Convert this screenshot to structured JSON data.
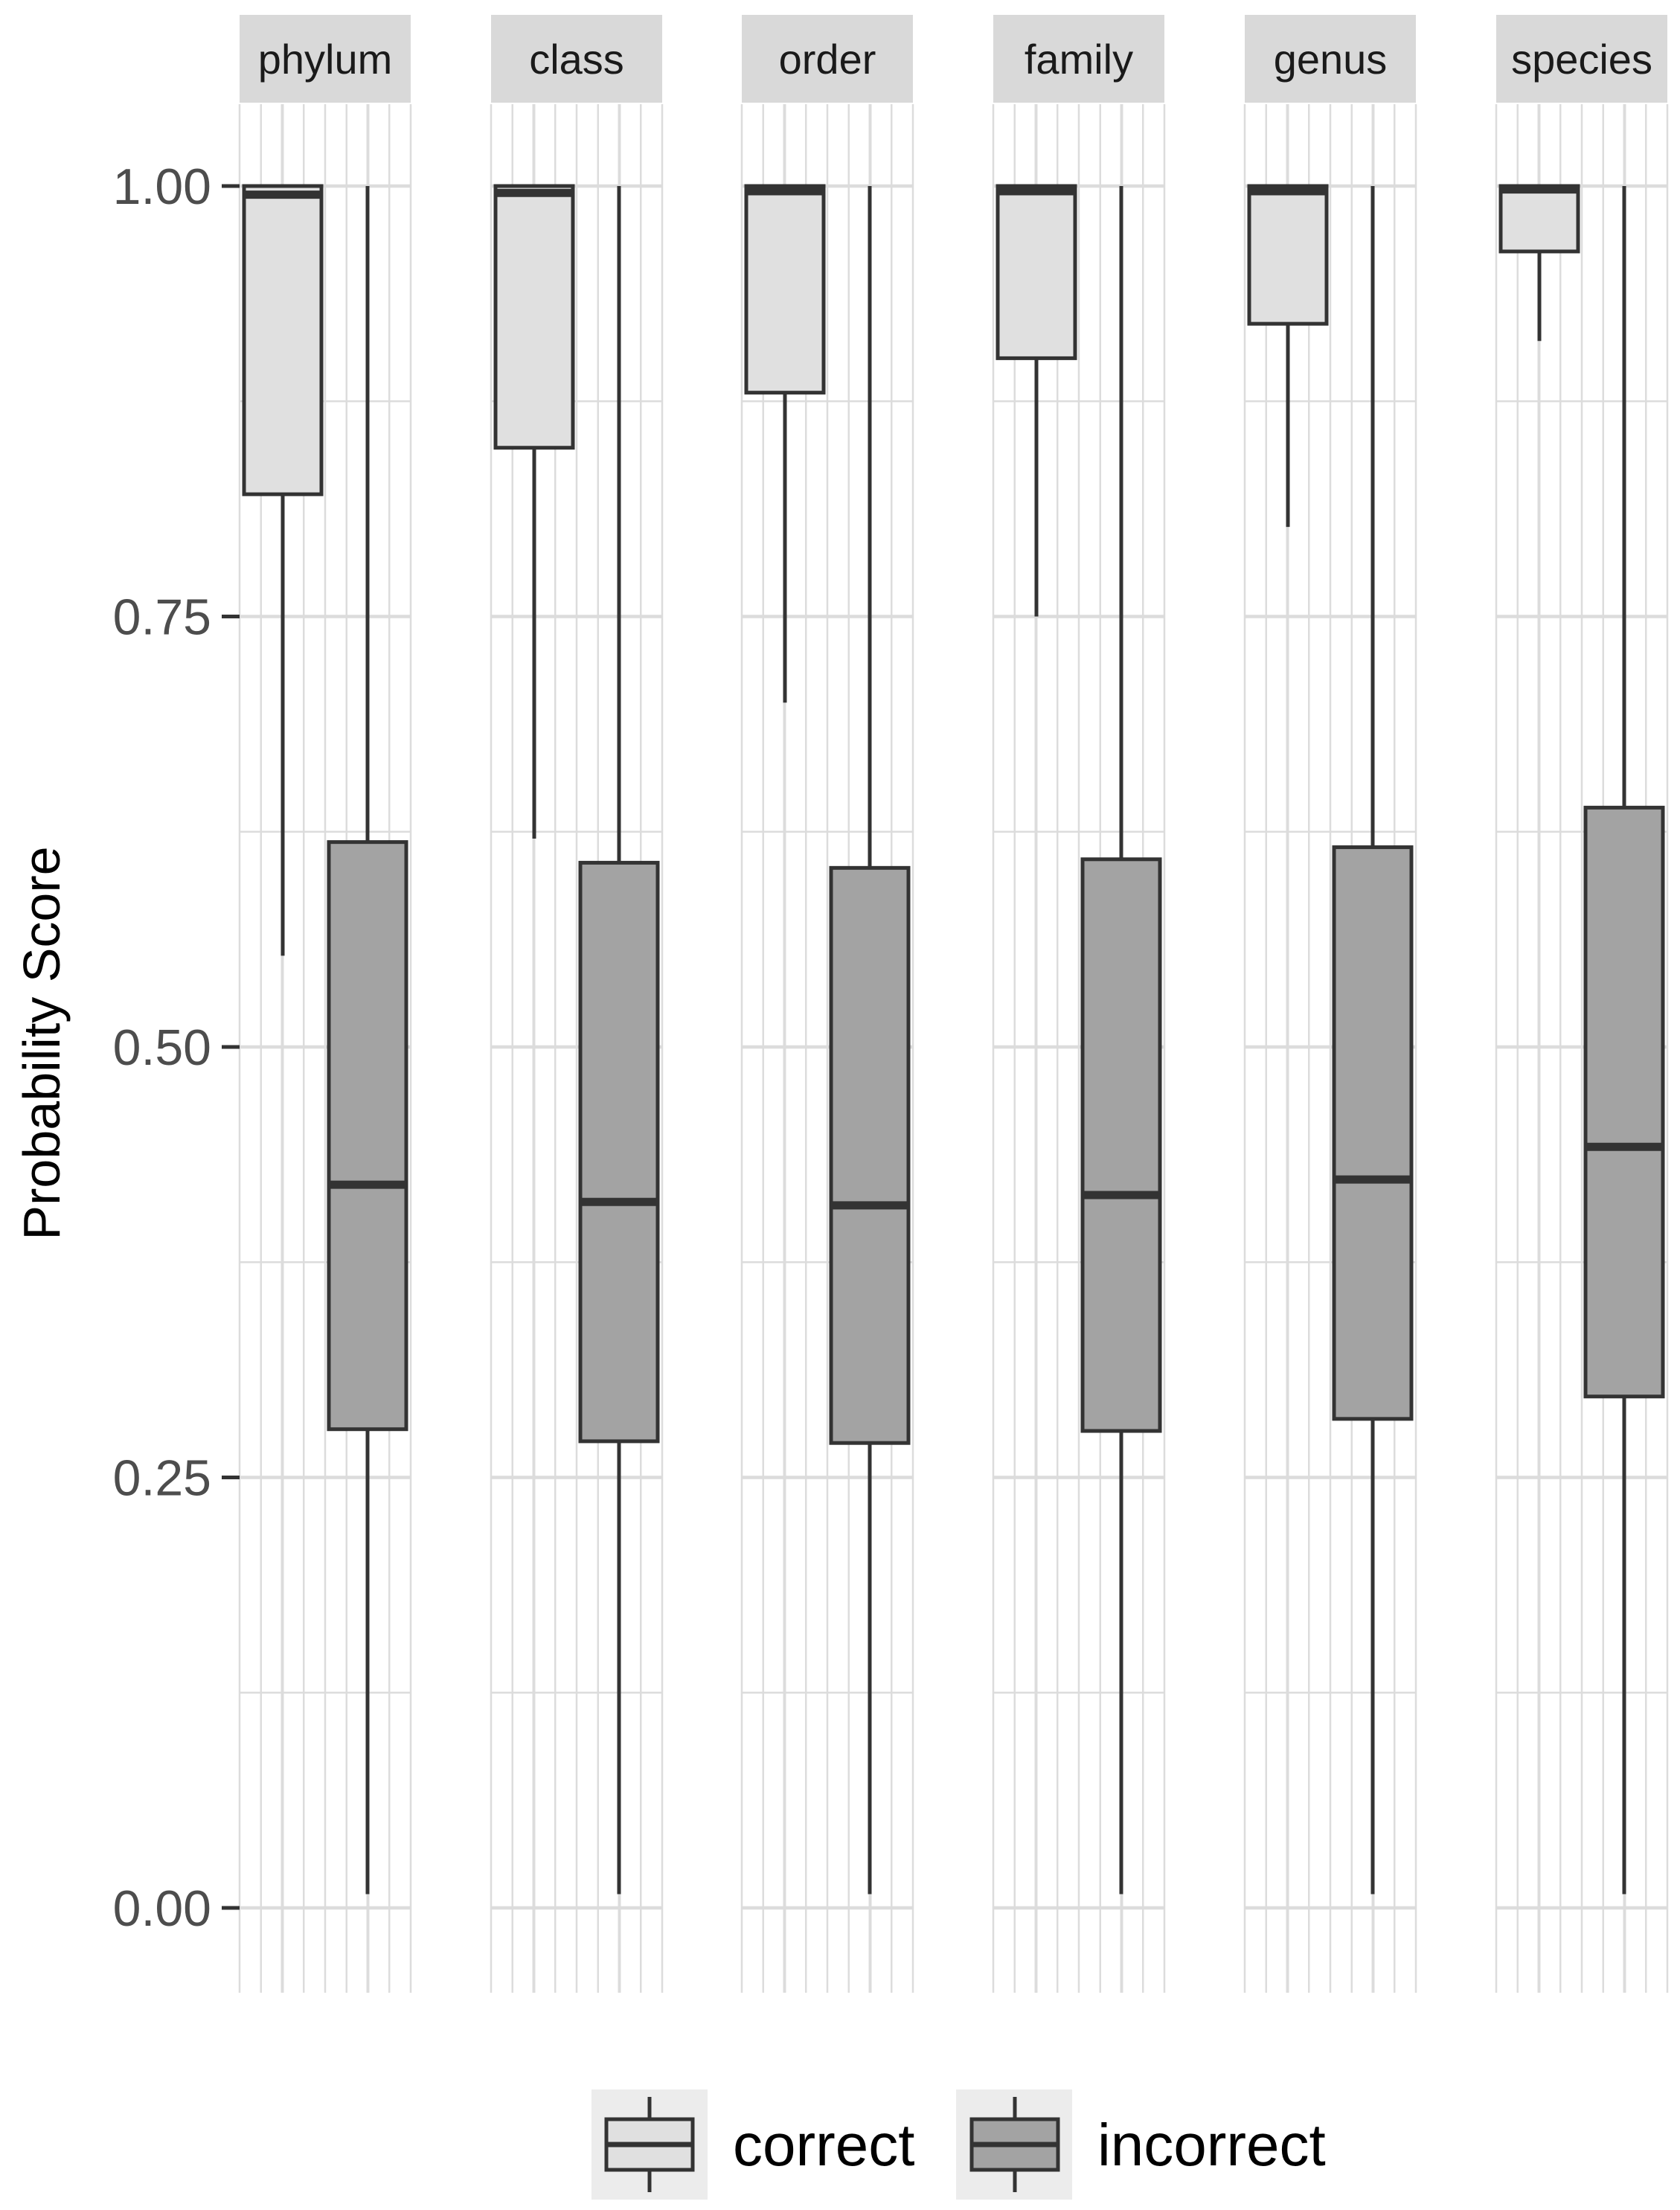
{
  "chart_data": {
    "type": "boxplot",
    "ylabel": "Probability Score",
    "ylim": [
      -0.05,
      1.05
    ],
    "yticks": [
      0.0,
      0.25,
      0.5,
      0.75,
      1.0
    ],
    "ytick_labels": [
      "0.00",
      "0.25",
      "0.50",
      "0.75",
      "1.00"
    ],
    "facets": [
      "phylum",
      "class",
      "order",
      "family",
      "genus",
      "species"
    ],
    "groups": [
      "correct",
      "incorrect"
    ],
    "colors": {
      "correct": "#e0e0e0",
      "incorrect": "#a3a3a3",
      "stroke": "#333333",
      "grid": "#dcdcdc",
      "strip": "#d9d9d9"
    },
    "legend_position": "bottom",
    "boxes": [
      {
        "facet": "phylum",
        "correct": {
          "min": 0.553,
          "q1": 0.821,
          "median": 0.995,
          "q3": 1.0,
          "max": 1.0
        },
        "incorrect": {
          "min": 0.008,
          "q1": 0.278,
          "median": 0.42,
          "q3": 0.619,
          "max": 1.0
        }
      },
      {
        "facet": "class",
        "correct": {
          "min": 0.621,
          "q1": 0.848,
          "median": 0.996,
          "q3": 1.0,
          "max": 1.0
        },
        "incorrect": {
          "min": 0.008,
          "q1": 0.271,
          "median": 0.41,
          "q3": 0.607,
          "max": 1.0
        }
      },
      {
        "facet": "order",
        "correct": {
          "min": 0.7,
          "q1": 0.88,
          "median": 0.997,
          "q3": 1.0,
          "max": 1.0
        },
        "incorrect": {
          "min": 0.008,
          "q1": 0.27,
          "median": 0.408,
          "q3": 0.604,
          "max": 1.0
        }
      },
      {
        "facet": "family",
        "correct": {
          "min": 0.75,
          "q1": 0.9,
          "median": 0.997,
          "q3": 1.0,
          "max": 1.0
        },
        "incorrect": {
          "min": 0.008,
          "q1": 0.277,
          "median": 0.414,
          "q3": 0.609,
          "max": 1.0
        }
      },
      {
        "facet": "genus",
        "correct": {
          "min": 0.802,
          "q1": 0.92,
          "median": 0.997,
          "q3": 1.0,
          "max": 1.0
        },
        "incorrect": {
          "min": 0.008,
          "q1": 0.284,
          "median": 0.423,
          "q3": 0.616,
          "max": 1.0
        }
      },
      {
        "facet": "species",
        "correct": {
          "min": 0.91,
          "q1": 0.962,
          "median": 0.998,
          "q3": 1.0,
          "max": 1.0
        },
        "incorrect": {
          "min": 0.008,
          "q1": 0.297,
          "median": 0.442,
          "q3": 0.639,
          "max": 1.0
        }
      }
    ]
  }
}
